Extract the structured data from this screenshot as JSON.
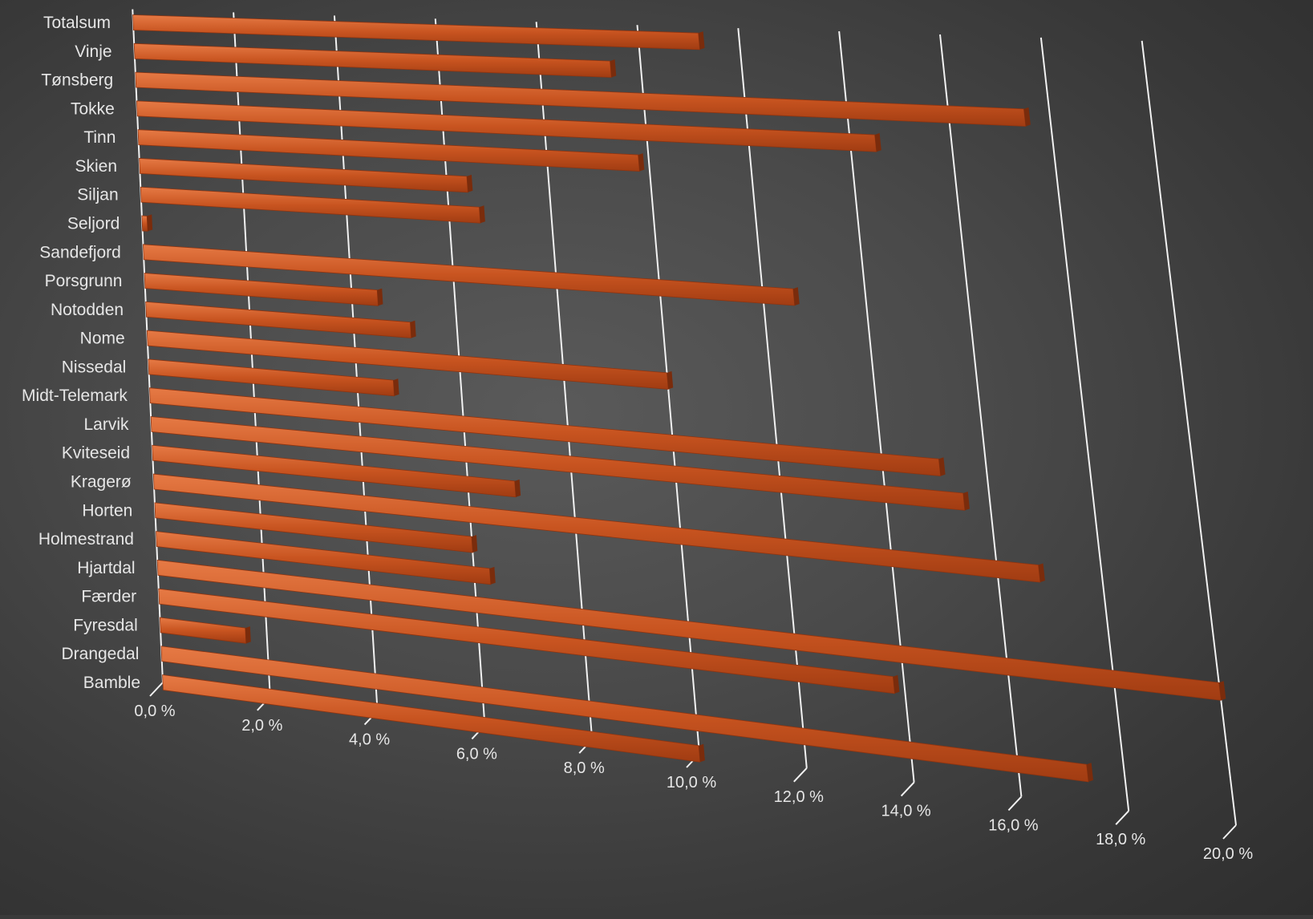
{
  "chart_data": {
    "type": "bar",
    "orientation": "horizontal",
    "perspective": "3d",
    "categories": [
      "Totalsum",
      "Vinje",
      "Tønsberg",
      "Tokke",
      "Tinn",
      "Skien",
      "Siljan",
      "Seljord",
      "Sandefjord",
      "Porsgrunn",
      "Notodden",
      "Nome",
      "Nissedal",
      "Midt-Telemark",
      "Larvik",
      "Kviteseid",
      "Kragerø",
      "Horten",
      "Holmestrand",
      "Hjartdal",
      "Færder",
      "Fyresdal",
      "Drangedal",
      "Bamble"
    ],
    "values": [
      11.2,
      9.4,
      17.5,
      14.5,
      9.8,
      6.4,
      6.6,
      0.1,
      12.6,
      4.5,
      5.1,
      10.0,
      4.7,
      15.1,
      15.5,
      6.9,
      16.8,
      6.0,
      6.3,
      20.0,
      13.8,
      1.6,
      17.3,
      10.0
    ],
    "xlim": [
      0,
      20
    ],
    "ticks": [
      "0,0 %",
      "2,0 %",
      "4,0 %",
      "6,0 %",
      "8,0 %",
      "10,0 %",
      "12,0 %",
      "14,0 %",
      "16,0 %",
      "18,0 %",
      "20,0 %"
    ],
    "grid": true,
    "bar_color": "#c5501a"
  }
}
